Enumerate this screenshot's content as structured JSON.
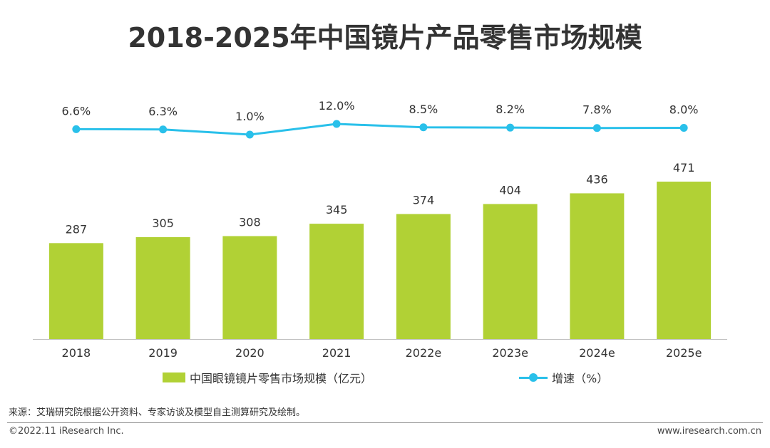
{
  "title": "2018-2025年中国镜片产品零售市场规模",
  "chart_data": {
    "type": "bar",
    "categories": [
      "2018",
      "2019",
      "2020",
      "2021",
      "2022e",
      "2023e",
      "2024e",
      "2025e"
    ],
    "series": [
      {
        "name": "中国眼镜镜片零售市场规模（亿元）",
        "type": "bar",
        "values": [
          287,
          305,
          308,
          345,
          374,
          404,
          436,
          471
        ],
        "labels": [
          "287",
          "305",
          "308",
          "345",
          "374",
          "404",
          "436",
          "471"
        ]
      },
      {
        "name": "增速（%）",
        "type": "line",
        "values": [
          6.6,
          6.3,
          1.0,
          12.0,
          8.5,
          8.2,
          7.8,
          8.0
        ],
        "labels": [
          "6.6%",
          "6.3%",
          "1.0%",
          "12.0%",
          "8.5%",
          "8.2%",
          "7.8%",
          "8.0%"
        ]
      }
    ],
    "ylim_bar": [
      0,
      600
    ],
    "ylim_line": [
      -180,
      20
    ],
    "grid": false,
    "legend_position": "bottom"
  },
  "colors": {
    "bar": "#b1d135",
    "line": "#29c0ea",
    "axis": "#bfbfbf"
  },
  "source": "来源：艾瑞研究院根据公开资料、专家访谈及模型自主测算研究及绘制。",
  "copyright": "©2022.11 iResearch Inc.",
  "website": "www.iresearch.com.cn"
}
